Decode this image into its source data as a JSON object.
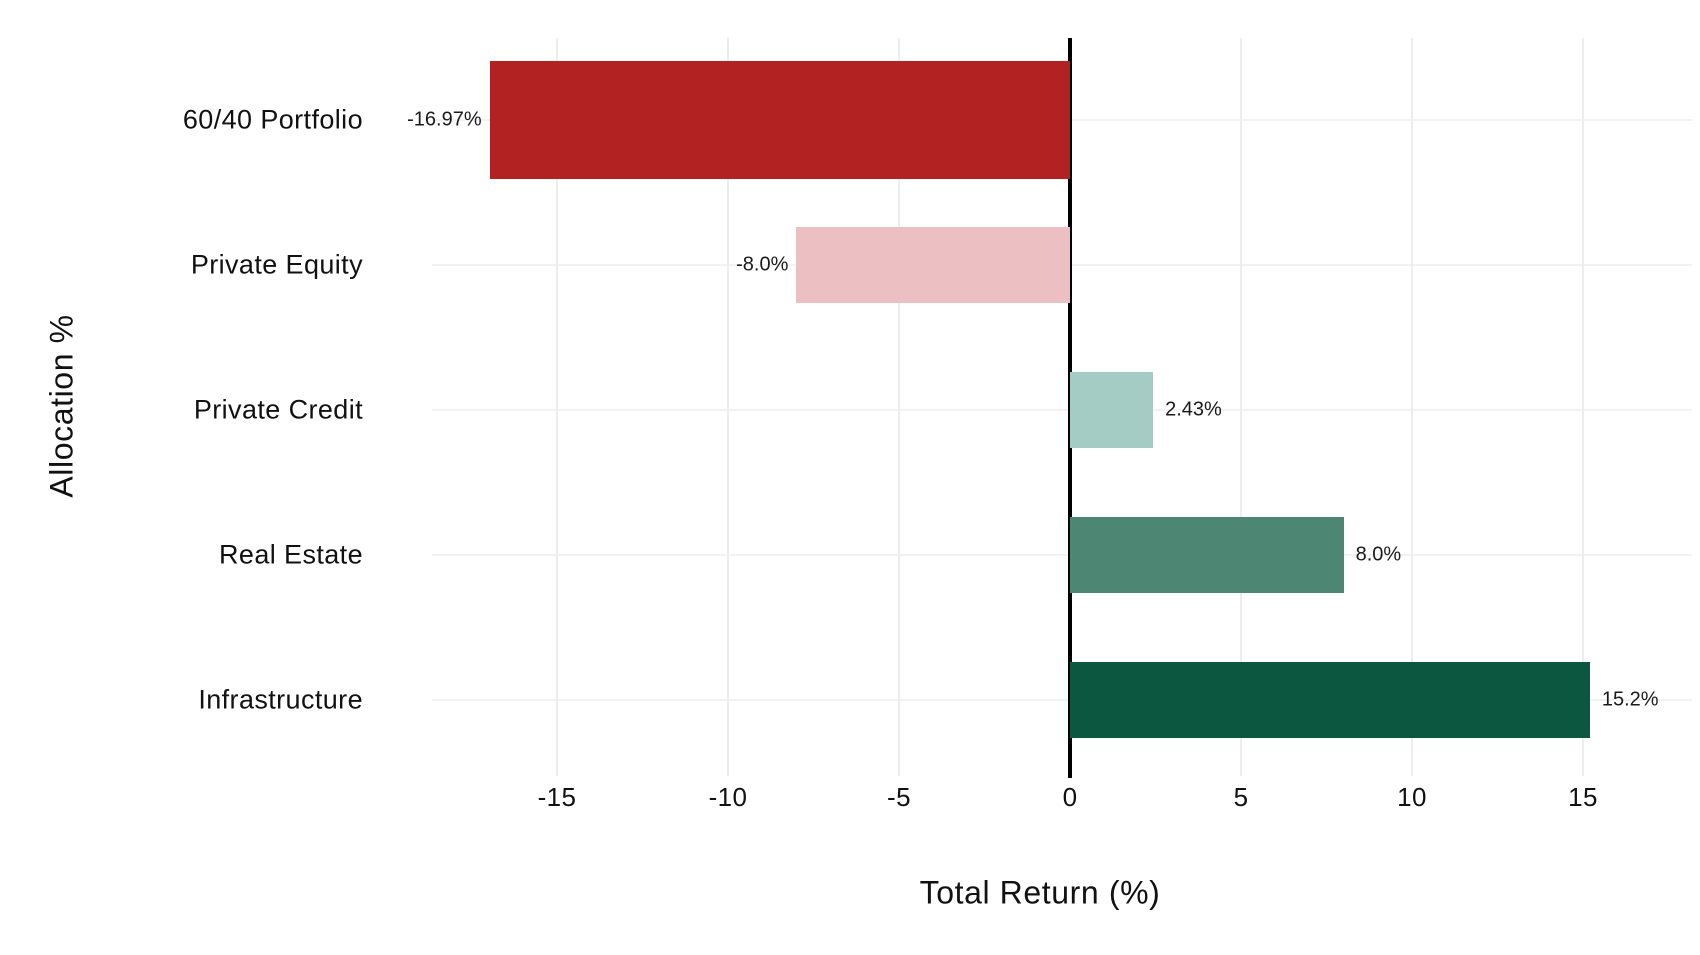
{
  "chart_data": {
    "type": "bar",
    "orientation": "horizontal",
    "xlabel": "Total Return (%)",
    "ylabel": "Allocation %",
    "categories": [
      "60/40 Portfolio",
      "Private Equity",
      "Private Credit",
      "Real Estate",
      "Infrastructure"
    ],
    "values": [
      -16.97,
      -8.0,
      2.43,
      8.0,
      15.2
    ],
    "value_labels": [
      "-16.97%",
      "-8.0%",
      "2.43%",
      "8.0%",
      "15.2%"
    ],
    "bar_colors": [
      "#B22222",
      "#ECBFC2",
      "#A4CCC4",
      "#4D8673",
      "#0B5740"
    ],
    "x_ticks": [
      "-15",
      "-10",
      "-5",
      "0",
      "5",
      "10",
      "15"
    ],
    "x_tick_values": [
      -15,
      -10,
      -5,
      0,
      5,
      10,
      15
    ],
    "xlim": [
      -18.7,
      18.2
    ],
    "grid": true,
    "zero_line_color": "#000000",
    "background": "#FFFFFF",
    "highlighted_category": "60/40 Portfolio"
  }
}
